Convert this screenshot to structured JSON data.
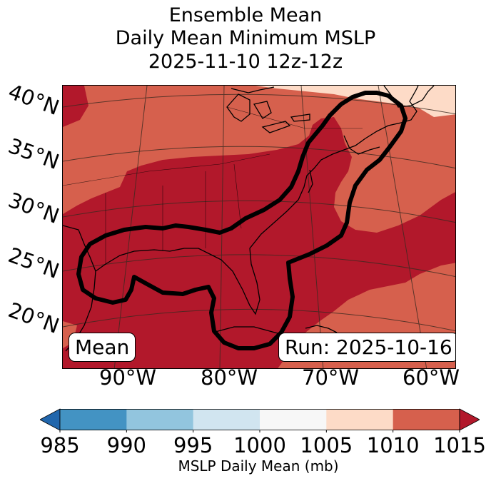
{
  "title": {
    "line1": "Ensemble Mean",
    "line2": "Daily Mean Minimum MSLP",
    "line3": "2025-11-10 12z-12z"
  },
  "map": {
    "lat_labels": [
      "40°N",
      "35°N",
      "30°N",
      "25°N",
      "20°N"
    ],
    "lon_labels": [
      "90°W",
      "80°W",
      "70°W",
      "60°W"
    ],
    "left_badge": "Mean",
    "right_badge": "Run: 2025-10-16",
    "fill_colors": {
      "985": "#2166ac",
      "990": "#4393c3",
      "995": "#92c5de",
      "1000": "#d1e5f0",
      "1005": "#f7f7f7",
      "1010": "#fddbc7",
      "1015": "#d6604d",
      "1020": "#b2182b"
    },
    "contour_color": "#000000"
  },
  "colorbar": {
    "levels": [
      "985",
      "990",
      "995",
      "1000",
      "1005",
      "1010",
      "1015"
    ],
    "colors": [
      "#4393c3",
      "#92c5de",
      "#d1e5f0",
      "#f7f7f7",
      "#fddbc7",
      "#d6604d"
    ],
    "under_color": "#2166ac",
    "over_color": "#b2182b",
    "label": "MSLP Daily Mean (mb)"
  }
}
